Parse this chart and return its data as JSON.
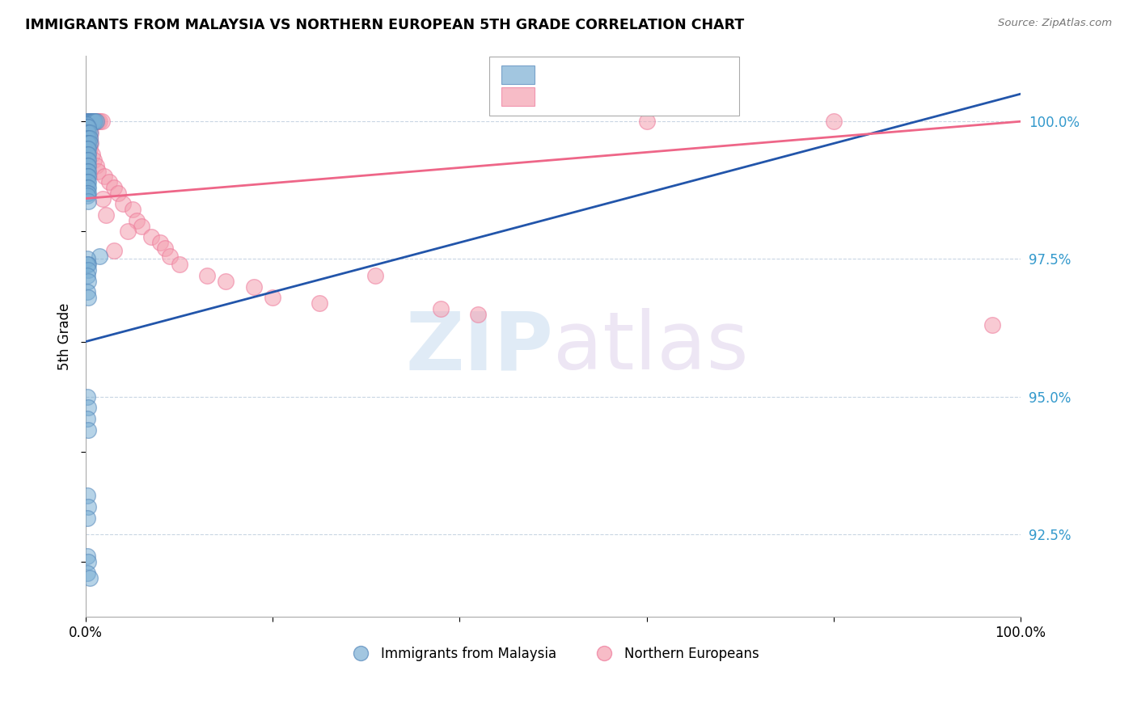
{
  "title": "IMMIGRANTS FROM MALAYSIA VS NORTHERN EUROPEAN 5TH GRADE CORRELATION CHART",
  "source": "Source: ZipAtlas.com",
  "ylabel": "5th Grade",
  "xmin": 0.0,
  "xmax": 1.0,
  "ymin": 0.91,
  "ymax": 1.012,
  "blue_color": "#7BAFD4",
  "pink_color": "#F4A0B0",
  "blue_edge_color": "#5588BB",
  "pink_edge_color": "#EE7799",
  "blue_line_color": "#2255AA",
  "pink_line_color": "#EE6688",
  "watermark_zip": "ZIP",
  "watermark_atlas": "atlas",
  "blue_scatter": [
    [
      0.001,
      1.0
    ],
    [
      0.002,
      1.0
    ],
    [
      0.003,
      1.0
    ],
    [
      0.004,
      1.0
    ],
    [
      0.005,
      1.0
    ],
    [
      0.006,
      1.0
    ],
    [
      0.007,
      1.0
    ],
    [
      0.008,
      1.0
    ],
    [
      0.009,
      1.0
    ],
    [
      0.01,
      1.0
    ],
    [
      0.011,
      1.0
    ],
    [
      0.001,
      0.9995
    ],
    [
      0.002,
      0.999
    ],
    [
      0.003,
      0.999
    ],
    [
      0.002,
      0.998
    ],
    [
      0.003,
      0.998
    ],
    [
      0.004,
      0.998
    ],
    [
      0.002,
      0.997
    ],
    [
      0.003,
      0.997
    ],
    [
      0.004,
      0.997
    ],
    [
      0.002,
      0.996
    ],
    [
      0.003,
      0.996
    ],
    [
      0.004,
      0.996
    ],
    [
      0.002,
      0.995
    ],
    [
      0.003,
      0.995
    ],
    [
      0.002,
      0.994
    ],
    [
      0.003,
      0.994
    ],
    [
      0.002,
      0.993
    ],
    [
      0.003,
      0.993
    ],
    [
      0.002,
      0.992
    ],
    [
      0.003,
      0.992
    ],
    [
      0.002,
      0.991
    ],
    [
      0.003,
      0.991
    ],
    [
      0.002,
      0.99
    ],
    [
      0.003,
      0.99
    ],
    [
      0.002,
      0.989
    ],
    [
      0.003,
      0.989
    ],
    [
      0.002,
      0.988
    ],
    [
      0.003,
      0.988
    ],
    [
      0.002,
      0.987
    ],
    [
      0.003,
      0.987
    ],
    [
      0.002,
      0.9865
    ],
    [
      0.003,
      0.9855
    ],
    [
      0.015,
      0.9755
    ],
    [
      0.002,
      0.975
    ],
    [
      0.003,
      0.974
    ],
    [
      0.002,
      0.974
    ],
    [
      0.003,
      0.973
    ],
    [
      0.002,
      0.972
    ],
    [
      0.003,
      0.971
    ],
    [
      0.002,
      0.969
    ],
    [
      0.003,
      0.968
    ],
    [
      0.002,
      0.95
    ],
    [
      0.003,
      0.948
    ],
    [
      0.002,
      0.946
    ],
    [
      0.003,
      0.944
    ],
    [
      0.002,
      0.932
    ],
    [
      0.003,
      0.93
    ],
    [
      0.002,
      0.928
    ],
    [
      0.002,
      0.921
    ],
    [
      0.003,
      0.92
    ],
    [
      0.002,
      0.918
    ],
    [
      0.004,
      0.917
    ]
  ],
  "pink_scatter": [
    [
      0.001,
      1.0
    ],
    [
      0.003,
      1.0
    ],
    [
      0.005,
      1.0
    ],
    [
      0.007,
      1.0
    ],
    [
      0.009,
      1.0
    ],
    [
      0.011,
      1.0
    ],
    [
      0.013,
      1.0
    ],
    [
      0.015,
      1.0
    ],
    [
      0.017,
      1.0
    ],
    [
      0.6,
      1.0
    ],
    [
      0.8,
      1.0
    ],
    [
      0.002,
      0.999
    ],
    [
      0.004,
      0.999
    ],
    [
      0.003,
      0.998
    ],
    [
      0.005,
      0.998
    ],
    [
      0.002,
      0.997
    ],
    [
      0.004,
      0.997
    ],
    [
      0.003,
      0.996
    ],
    [
      0.005,
      0.996
    ],
    [
      0.002,
      0.995
    ],
    [
      0.004,
      0.995
    ],
    [
      0.007,
      0.994
    ],
    [
      0.009,
      0.993
    ],
    [
      0.011,
      0.992
    ],
    [
      0.013,
      0.991
    ],
    [
      0.02,
      0.99
    ],
    [
      0.025,
      0.989
    ],
    [
      0.03,
      0.988
    ],
    [
      0.035,
      0.987
    ],
    [
      0.018,
      0.986
    ],
    [
      0.04,
      0.985
    ],
    [
      0.05,
      0.984
    ],
    [
      0.022,
      0.983
    ],
    [
      0.055,
      0.982
    ],
    [
      0.06,
      0.981
    ],
    [
      0.045,
      0.98
    ],
    [
      0.07,
      0.979
    ],
    [
      0.08,
      0.978
    ],
    [
      0.085,
      0.977
    ],
    [
      0.03,
      0.9765
    ],
    [
      0.09,
      0.9755
    ],
    [
      0.1,
      0.974
    ],
    [
      0.13,
      0.972
    ],
    [
      0.31,
      0.972
    ],
    [
      0.15,
      0.971
    ],
    [
      0.18,
      0.97
    ],
    [
      0.2,
      0.968
    ],
    [
      0.25,
      0.967
    ],
    [
      0.38,
      0.966
    ],
    [
      0.42,
      0.965
    ],
    [
      0.97,
      0.963
    ]
  ],
  "blue_trend_x": [
    0.0,
    1.0
  ],
  "blue_trend_y": [
    0.96,
    1.005
  ],
  "pink_trend_x": [
    0.0,
    1.0
  ],
  "pink_trend_y": [
    0.986,
    1.0
  ],
  "ytick_positions": [
    0.925,
    0.95,
    0.975,
    1.0
  ],
  "ytick_labels": [
    "92.5%",
    "95.0%",
    "97.5%",
    "100.0%"
  ]
}
